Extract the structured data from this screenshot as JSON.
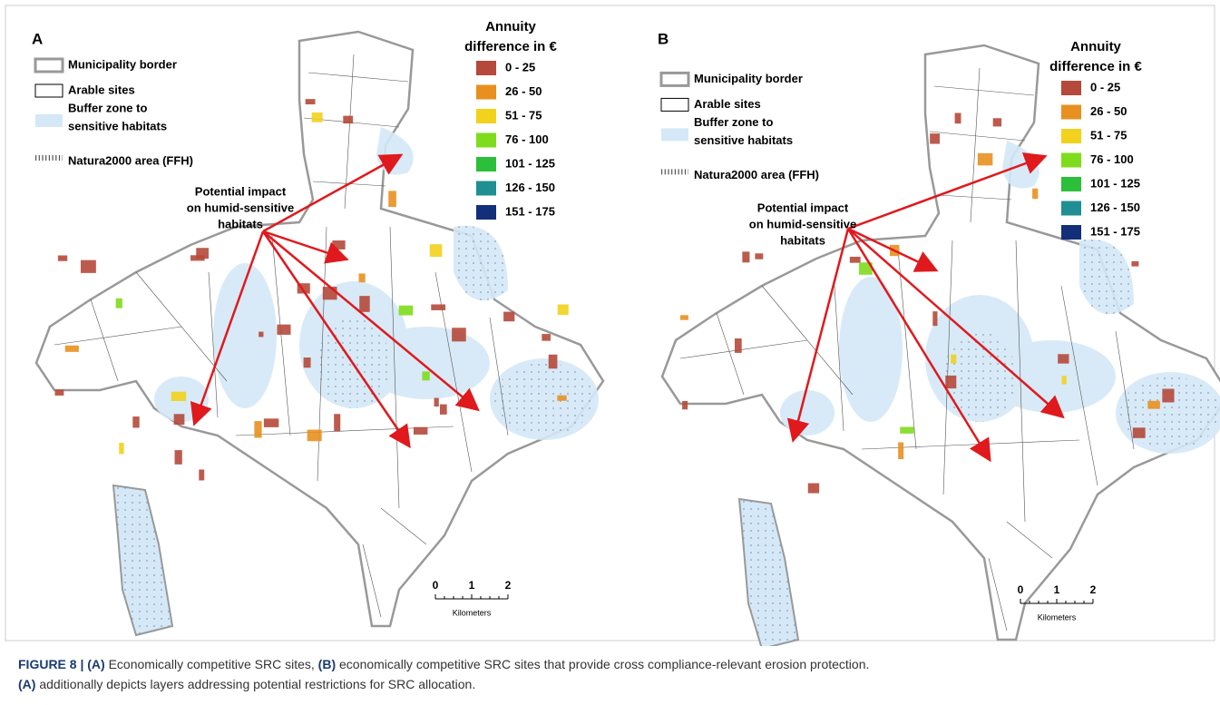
{
  "panels": [
    {
      "label": "A",
      "legend": [
        "Municipality border",
        "Arable sites",
        "Buffer zone to",
        "sensitive habitats",
        "Natura2000 area (FFH)"
      ],
      "annuity_title": [
        "Annuity",
        "difference in  €"
      ],
      "classes": [
        {
          "label": "0 - 25",
          "color": "#b5493a"
        },
        {
          "label": "26 - 50",
          "color": "#e8901f"
        },
        {
          "label": "51 - 75",
          "color": "#f2d21c"
        },
        {
          "label": "76 - 100",
          "color": "#7fdc1c"
        },
        {
          "label": "101 - 125",
          "color": "#2cbf3a"
        },
        {
          "label": "126 - 150",
          "color": "#1f8f93"
        },
        {
          "label": "151 - 175",
          "color": "#132f7a"
        }
      ],
      "annotation": [
        "Potential impact",
        "on humid-sensitive",
        "habitats"
      ],
      "scale": {
        "ticks": [
          "0",
          "1",
          "2"
        ],
        "unit": "Kilometers"
      }
    },
    {
      "label": "B",
      "legend": [
        "Municipality border",
        "Arable sites",
        "Buffer zone to",
        "sensitive habitats",
        "Natura2000 area (FFH)"
      ],
      "annuity_title": [
        "Annuity",
        "difference in  €"
      ],
      "classes": [
        {
          "label": "0 - 25",
          "color": "#b5493a"
        },
        {
          "label": "26 - 50",
          "color": "#e8901f"
        },
        {
          "label": "51 - 75",
          "color": "#f2d21c"
        },
        {
          "label": "76 - 100",
          "color": "#7fdc1c"
        },
        {
          "label": "101 - 125",
          "color": "#2cbf3a"
        },
        {
          "label": "126 - 150",
          "color": "#1f8f93"
        },
        {
          "label": "151 - 175",
          "color": "#132f7a"
        }
      ],
      "annotation": [
        "Potential impact",
        "on humid-sensitive",
        "habitats"
      ],
      "scale": {
        "ticks": [
          "0",
          "1",
          "2"
        ],
        "unit": "Kilometers"
      }
    }
  ],
  "caption": {
    "line1": [
      {
        "text": "FIGURE 8 | ",
        "bold": true
      },
      {
        "text": "(A)",
        "bold": true
      },
      {
        "text": " Economically competitive SRC sites, ",
        "bold": false
      },
      {
        "text": "(B)",
        "bold": true
      },
      {
        "text": " economically competitive SRC sites that provide cross compliance-relevant erosion protection.",
        "bold": false
      }
    ],
    "line2": [
      {
        "text": "(A)",
        "bold": true
      },
      {
        "text": " additionally depicts layers addressing potential restrictions for SRC allocation.",
        "bold": false
      }
    ]
  }
}
